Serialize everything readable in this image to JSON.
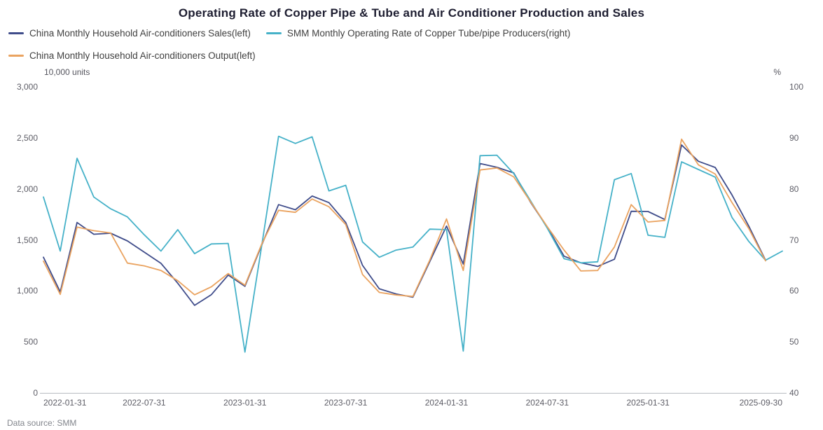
{
  "title": "Operating Rate of Copper Pipe & Tube and Air Conditioner Production and Sales",
  "data_source": "Data source:  SMM",
  "axes": {
    "left_unit": "10,000 units",
    "right_unit": "%",
    "left_ticks": [
      "0",
      "500",
      "1,000",
      "1,500",
      "2,000",
      "2,500",
      "3,000"
    ],
    "right_ticks": [
      "40",
      "50",
      "60",
      "70",
      "80",
      "90",
      "100"
    ],
    "x_tick_labels": [
      "2022-01-31",
      "2022-07-31",
      "2023-01-31",
      "2023-07-31",
      "2024-01-31",
      "2024-07-31",
      "2025-01-31",
      "2025-09-30"
    ],
    "x_tick_indices": [
      0,
      6,
      12,
      18,
      24,
      30,
      36,
      44
    ]
  },
  "chart_data": {
    "type": "line",
    "title": "Operating Rate of Copper Pipe & Tube and Air Conditioner Production and Sales",
    "left_axis": {
      "label": "10,000 units",
      "range": [
        0,
        3000
      ],
      "tick_step": 500
    },
    "right_axis": {
      "label": "%",
      "range": [
        40,
        100
      ],
      "tick_step": 10
    },
    "grid": false,
    "legend_position": "top-left",
    "categories": [
      "2022-01-31",
      "2022-02-28",
      "2022-03-31",
      "2022-04-30",
      "2022-05-31",
      "2022-06-30",
      "2022-07-31",
      "2022-08-31",
      "2022-09-30",
      "2022-10-31",
      "2022-11-30",
      "2022-12-31",
      "2023-01-31",
      "2023-02-28",
      "2023-03-31",
      "2023-04-30",
      "2023-05-31",
      "2023-06-30",
      "2023-07-31",
      "2023-08-31",
      "2023-09-30",
      "2023-10-31",
      "2023-11-30",
      "2023-12-31",
      "2024-01-31",
      "2024-02-29",
      "2024-03-31",
      "2024-04-30",
      "2024-05-31",
      "2024-06-30",
      "2024-07-31",
      "2024-08-31",
      "2024-09-30",
      "2024-10-31",
      "2024-11-30",
      "2024-12-31",
      "2025-01-31",
      "2025-02-28",
      "2025-03-31",
      "2025-04-30",
      "2025-05-31",
      "2025-06-30",
      "2025-07-31",
      "2025-08-31",
      "2025-09-30"
    ],
    "series": [
      {
        "name": "China Monthly Household Air-conditioners Sales(left)",
        "axis": "left",
        "color": "#3F4C8A",
        "values": [
          1330,
          990,
          1670,
          1555,
          1565,
          1490,
          1380,
          1270,
          1075,
          858,
          963,
          1155,
          1045,
          1450,
          1845,
          1795,
          1930,
          1865,
          1670,
          1250,
          1020,
          970,
          938,
          1285,
          1635,
          1263,
          2248,
          2211,
          2156,
          1870,
          1625,
          1340,
          1275,
          1240,
          1310,
          1780,
          1778,
          1700,
          2430,
          2270,
          2210,
          1940,
          1635,
          1300,
          null
        ]
      },
      {
        "name": "SMM Monthly Operating Rate of Copper Tube/pipe Producers(right)",
        "axis": "right",
        "color": "#45B1C8",
        "values": [
          78.4,
          67.8,
          86,
          78.4,
          76.1,
          74.5,
          71,
          67.8,
          72,
          67.3,
          69.2,
          69.3,
          48,
          68.9,
          90.3,
          88.9,
          90.2,
          79.6,
          80.7,
          69.6,
          66.6,
          68,
          68.6,
          72.1,
          72,
          48.2,
          86.5,
          86.6,
          83,
          77.7,
          72.3,
          66.3,
          65.5,
          65.7,
          81.8,
          83,
          70.9,
          70.5,
          85.3,
          83.8,
          82.3,
          74.4,
          69.7,
          66,
          67.8
        ]
      },
      {
        "name": "China Monthly Household Air-conditioners Output(left)",
        "axis": "left",
        "color": "#EAA360",
        "values": [
          1292,
          965,
          1625,
          1590,
          1568,
          1272,
          1245,
          1200,
          1100,
          962,
          1040,
          1170,
          1055,
          1460,
          1790,
          1770,
          1900,
          1825,
          1650,
          1160,
          985,
          960,
          945,
          1300,
          1705,
          1200,
          2185,
          2205,
          2118,
          1875,
          1630,
          1400,
          1195,
          1200,
          1430,
          1845,
          1675,
          1690,
          2487,
          2235,
          2145,
          1865,
          1612,
          1295,
          null
        ]
      }
    ]
  },
  "legend": {
    "rows": [
      [
        0,
        1
      ],
      [
        2
      ]
    ]
  }
}
